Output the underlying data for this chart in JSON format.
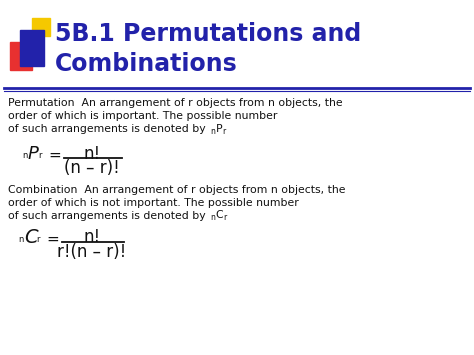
{
  "title_line1": "5B.1 Permutations and",
  "title_line2": "Combinations",
  "title_color": "#2222aa",
  "bg_color": "#ffffff",
  "perm_def_line1": "Permutation  An arrangement of r objects from n objects, the",
  "perm_def_line2": "order of which is important. The possible number",
  "perm_def_line3": "of such arrangements is denoted by ",
  "perm_formula_num": "n!",
  "perm_formula_den": "(n – r)!",
  "comb_def_line1": "Combination  An arrangement of r objects from n objects, the",
  "comb_def_line2": "order of which is not important. The possible number",
  "comb_def_line3": "of such arrangements is denoted by ",
  "comb_formula_num": "n!",
  "comb_formula_den": "r!(n – r)!",
  "text_color": "#111111",
  "formula_color": "#111111",
  "square_yellow": "#f5c800",
  "square_red": "#e83030",
  "square_blue": "#2222aa",
  "line_color": "#2222aa",
  "fig_w": 4.74,
  "fig_h": 3.55,
  "dpi": 100
}
